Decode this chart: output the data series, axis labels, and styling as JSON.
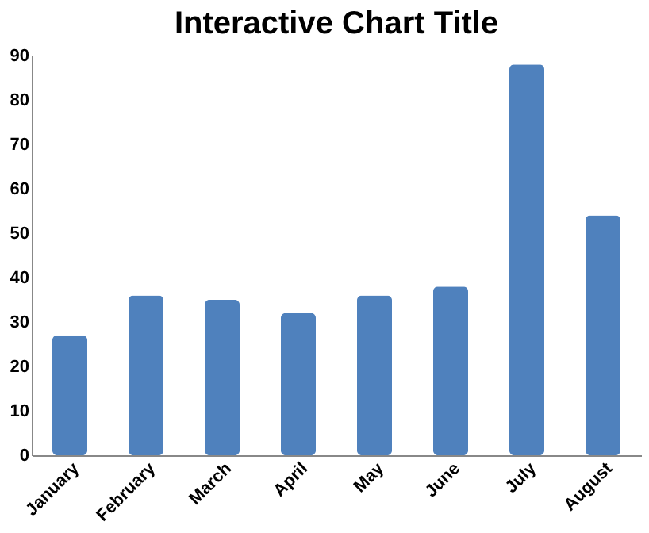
{
  "chart_data": {
    "type": "bar",
    "title": "Interactive Chart Title",
    "categories": [
      "January",
      "February",
      "March",
      "April",
      "May",
      "June",
      "July",
      "August"
    ],
    "values": [
      27,
      36,
      35,
      32,
      36,
      38,
      88,
      54
    ],
    "color": "#4f81bd",
    "ylim": [
      0,
      90
    ],
    "yticks": [
      0,
      10,
      20,
      30,
      40,
      50,
      60,
      70,
      80,
      90
    ],
    "grid": false
  }
}
